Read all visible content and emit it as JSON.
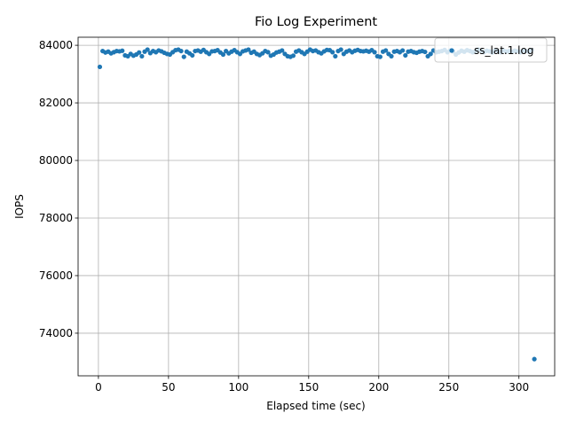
{
  "chart_data": {
    "type": "scatter",
    "title": "Fio Log Experiment",
    "x_label": "Elapsed time (sec)",
    "y_label": "IOPS",
    "xlim": [
      -14.5,
      325.5
    ],
    "ylim": [
      72520,
      84280
    ],
    "xticks": [
      0,
      50,
      100,
      150,
      200,
      250,
      300
    ],
    "yticks": [
      74000,
      76000,
      78000,
      80000,
      82000,
      84000
    ],
    "grid": true,
    "legend": "upper right",
    "x": [
      1,
      3,
      5,
      7,
      9,
      11,
      13,
      15,
      17,
      19,
      21,
      23,
      25,
      27,
      29,
      31,
      33,
      35,
      37,
      39,
      41,
      43,
      45,
      47,
      49,
      51,
      53,
      55,
      57,
      59,
      61,
      63,
      65,
      67,
      69,
      71,
      73,
      75,
      77,
      79,
      81,
      83,
      85,
      87,
      89,
      91,
      93,
      95,
      97,
      99,
      101,
      103,
      105,
      107,
      109,
      111,
      113,
      115,
      117,
      119,
      121,
      123,
      125,
      127,
      129,
      131,
      133,
      135,
      137,
      139,
      141,
      143,
      145,
      147,
      149,
      151,
      153,
      155,
      157,
      159,
      161,
      163,
      165,
      167,
      169,
      171,
      173,
      175,
      177,
      179,
      181,
      183,
      185,
      187,
      189,
      191,
      193,
      195,
      197,
      199,
      201,
      203,
      205,
      207,
      209,
      211,
      213,
      215,
      217,
      219,
      221,
      223,
      225,
      227,
      229,
      231,
      233,
      235,
      237,
      239,
      241,
      243,
      245,
      247,
      249,
      251,
      253,
      255,
      257,
      259,
      261,
      263,
      265,
      267,
      269,
      271,
      273,
      275,
      277,
      279,
      281,
      283,
      285,
      287,
      289,
      291,
      293,
      295,
      297,
      299,
      301,
      303,
      305,
      307,
      309,
      311
    ],
    "series": [
      {
        "name": "ss_lat.1.log",
        "color": "#1f77b4",
        "values": [
          83250,
          83800,
          83750,
          83780,
          83720,
          83760,
          83800,
          83790,
          83810,
          83650,
          83620,
          83700,
          83640,
          83680,
          83750,
          83620,
          83780,
          83850,
          83730,
          83800,
          83760,
          83820,
          83790,
          83740,
          83700,
          83680,
          83760,
          83830,
          83850,
          83800,
          83600,
          83780,
          83720,
          83650,
          83800,
          83820,
          83780,
          83840,
          83760,
          83700,
          83790,
          83800,
          83830,
          83750,
          83680,
          83800,
          83720,
          83780,
          83830,
          83760,
          83700,
          83790,
          83820,
          83850,
          83740,
          83780,
          83700,
          83660,
          83720,
          83800,
          83760,
          83640,
          83680,
          83750,
          83780,
          83820,
          83700,
          83620,
          83600,
          83640,
          83780,
          83820,
          83760,
          83700,
          83780,
          83850,
          83800,
          83820,
          83760,
          83720,
          83790,
          83840,
          83830,
          83760,
          83620,
          83800,
          83850,
          83700,
          83780,
          83820,
          83760,
          83810,
          83840,
          83800,
          83790,
          83810,
          83780,
          83830,
          83760,
          83620,
          83600,
          83780,
          83820,
          83700,
          83620,
          83780,
          83800,
          83760,
          83820,
          83650,
          83780,
          83800,
          83760,
          83740,
          83780,
          83800,
          83770,
          83620,
          83700,
          83820,
          83760,
          83780,
          83800,
          83840,
          83760,
          83820,
          83790,
          83680,
          83750,
          83810,
          83780,
          83830,
          83800,
          83760,
          83790,
          83850,
          83820,
          83760,
          83810,
          83790,
          83750,
          83830,
          83800,
          83760,
          83820,
          83780,
          83800,
          83770,
          83810,
          83790,
          83760,
          83820,
          83800,
          83780,
          83840,
          73100
        ]
      }
    ]
  }
}
